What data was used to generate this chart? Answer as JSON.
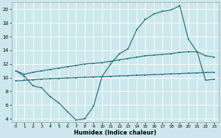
{
  "xlabel": "Humidex (Indice chaleur)",
  "bg_color": "#cce8ed",
  "grid_color": "#ffffff",
  "line_color": "#1e7070",
  "curve_main_x": [
    0,
    1,
    2,
    3,
    4,
    5,
    6,
    7,
    8,
    9,
    10,
    11,
    12,
    13,
    14,
    15,
    16,
    17,
    18,
    19,
    20,
    21,
    22,
    23
  ],
  "curve_main_y": [
    11.0,
    10.2,
    8.8,
    8.5,
    7.2,
    6.3,
    5.0,
    3.8,
    4.0,
    5.8,
    10.2,
    12.0,
    13.5,
    14.2,
    17.0,
    18.5,
    19.3,
    19.7,
    19.9,
    20.5,
    15.6,
    13.8,
    9.6,
    9.8
  ],
  "curve_upper_x": [
    0,
    1,
    2,
    3,
    4,
    5,
    6,
    7,
    8,
    9,
    10,
    11,
    12,
    13,
    14,
    15,
    16,
    17,
    18,
    19,
    20,
    21,
    22,
    23
  ],
  "curve_upper_y": [
    11.0,
    10.5,
    10.8,
    11.0,
    11.2,
    11.4,
    11.6,
    11.8,
    12.0,
    12.1,
    12.2,
    12.4,
    12.6,
    12.8,
    13.0,
    13.2,
    13.3,
    13.4,
    13.5,
    13.7,
    13.8,
    13.8,
    13.2,
    13.0
  ],
  "curve_lower_x": [
    0,
    1,
    2,
    3,
    4,
    5,
    6,
    7,
    8,
    9,
    10,
    11,
    12,
    13,
    14,
    15,
    16,
    17,
    18,
    19,
    20,
    21,
    22,
    23
  ],
  "curve_lower_y": [
    9.5,
    9.6,
    9.7,
    9.8,
    9.85,
    9.9,
    9.95,
    10.0,
    10.05,
    10.1,
    10.15,
    10.2,
    10.25,
    10.3,
    10.35,
    10.4,
    10.45,
    10.5,
    10.55,
    10.6,
    10.65,
    10.7,
    10.75,
    10.8
  ],
  "xlim": [
    -0.5,
    23.5
  ],
  "ylim": [
    3.5,
    21.0
  ],
  "yticks": [
    4,
    6,
    8,
    10,
    12,
    14,
    16,
    18,
    20
  ],
  "xticks": [
    0,
    1,
    2,
    3,
    4,
    5,
    6,
    7,
    8,
    9,
    10,
    11,
    12,
    13,
    14,
    15,
    16,
    17,
    18,
    19,
    20,
    21,
    22,
    23
  ],
  "xlabel_fontsize": 6,
  "tick_fontsize": 5,
  "linewidth": 0.9,
  "markersize": 2.0
}
